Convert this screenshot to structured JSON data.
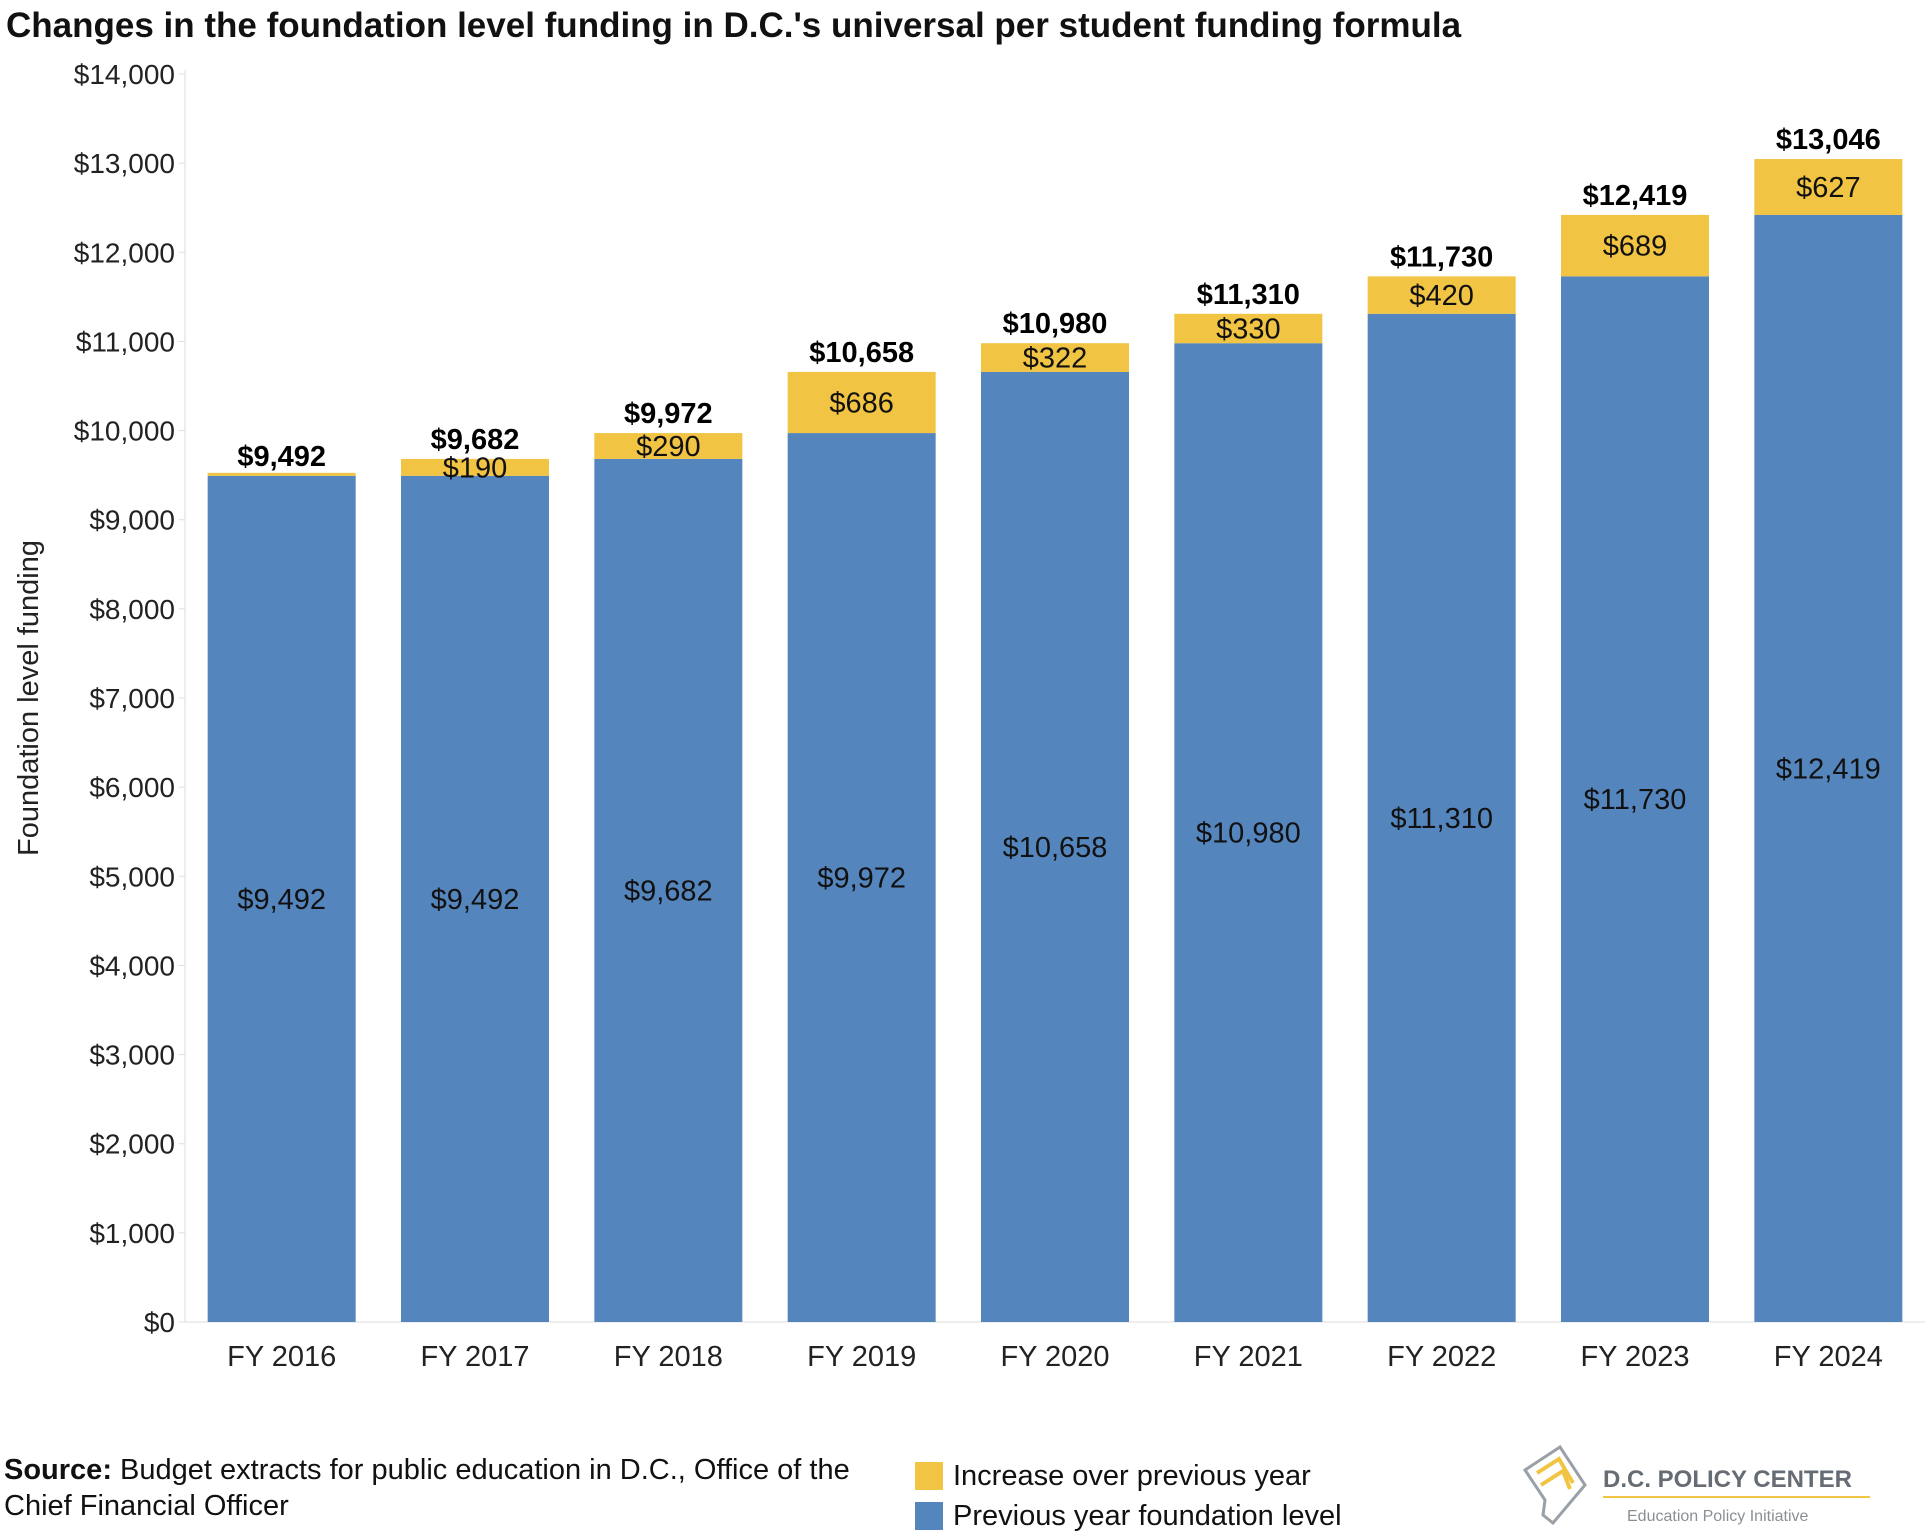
{
  "title": "Changes in the foundation level funding in D.C.'s universal per student funding formula",
  "colors": {
    "base": "#5585bd",
    "increase": "#f2c443",
    "axis": "#dddddd",
    "text": "#111111"
  },
  "chart_data": {
    "type": "bar",
    "stacked": true,
    "categories": [
      "FY 2016",
      "FY 2017",
      "FY 2018",
      "FY 2019",
      "FY 2020",
      "FY 2021",
      "FY 2022",
      "FY 2023",
      "FY 2024"
    ],
    "series": [
      {
        "name": "Previous year foundation level",
        "values": [
          9492,
          9492,
          9682,
          9972,
          10658,
          10980,
          11310,
          11730,
          12419
        ],
        "labels": [
          "$9,492",
          "$9,492",
          "$9,682",
          "$9,972",
          "$10,658",
          "$10,980",
          "$11,310",
          "$11,730",
          "$12,419"
        ]
      },
      {
        "name": "Increase over previous year",
        "values": [
          0,
          190,
          290,
          686,
          322,
          330,
          420,
          689,
          627
        ],
        "labels": [
          "",
          "$190",
          "$290",
          "$686",
          "$322",
          "$330",
          "$420",
          "$689",
          "$627"
        ]
      }
    ],
    "totals": [
      "$9,492",
      "$9,682",
      "$9,972",
      "$10,658",
      "$10,980",
      "$11,310",
      "$11,730",
      "$12,419",
      "$13,046"
    ],
    "ylabel": "Foundation level funding",
    "ylim": [
      0,
      14000
    ],
    "yticks": [
      0,
      1000,
      2000,
      3000,
      4000,
      5000,
      6000,
      7000,
      8000,
      9000,
      10000,
      11000,
      12000,
      13000,
      14000
    ],
    "ytick_labels": [
      "$0",
      "$1,000",
      "$2,000",
      "$3,000",
      "$4,000",
      "$5,000",
      "$6,000",
      "$7,000",
      "$8,000",
      "$9,000",
      "$10,000",
      "$11,000",
      "$12,000",
      "$13,000",
      "$14,000"
    ],
    "grid": false,
    "legend_position": "bottom-center"
  },
  "footer": {
    "source_label": "Source:",
    "source_text": " Budget extracts for public education in D.C., Office of the Chief Financial Officer"
  },
  "legend": {
    "items": [
      {
        "label": "Increase over previous year",
        "color": "#f2c443"
      },
      {
        "label": "Previous year foundation level",
        "color": "#5585bd"
      }
    ]
  },
  "logo": {
    "name": "D.C. POLICY CENTER",
    "tagline": "Education Policy Initiative"
  }
}
